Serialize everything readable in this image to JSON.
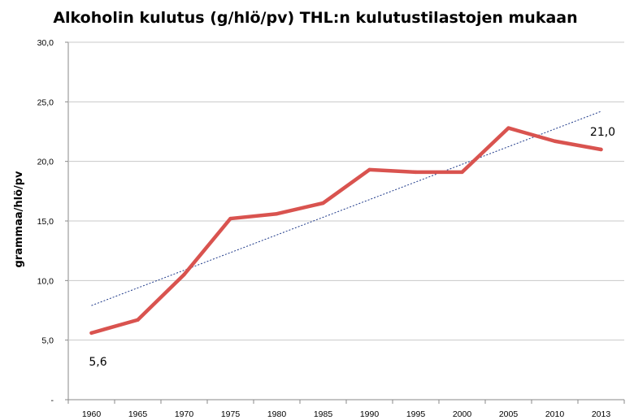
{
  "chart_data": {
    "type": "line",
    "title": "Alkoholin kulutus (g/hlö/pv) THL:n kulutustilastojen mukaan",
    "ylabel": "grammaa/hlö/pv",
    "xlabel": "",
    "categories": [
      "1960",
      "1965",
      "1970",
      "1975",
      "1980",
      "1985",
      "1990",
      "1995",
      "2000",
      "2005",
      "2010",
      "2013"
    ],
    "y_ticks": [
      "-",
      "5,0",
      "10,0",
      "15,0",
      "20,0",
      "25,0",
      "30,0"
    ],
    "ylim": [
      0,
      30
    ],
    "grid": "horizontal",
    "series": [
      {
        "values": [
          5.6,
          6.7,
          10.5,
          15.2,
          15.6,
          16.5,
          19.3,
          19.1,
          19.1,
          22.8,
          21.7,
          21.0
        ],
        "color": "#d9534f"
      }
    ],
    "trendline": {
      "start": 7.9,
      "end": 24.2,
      "color": "#1f3a8a",
      "style": "dotted"
    },
    "annotations": [
      {
        "text": "5,6",
        "category": "1960",
        "value": 5.6
      },
      {
        "text": "21,0",
        "category": "2013",
        "value": 21.0
      }
    ]
  }
}
